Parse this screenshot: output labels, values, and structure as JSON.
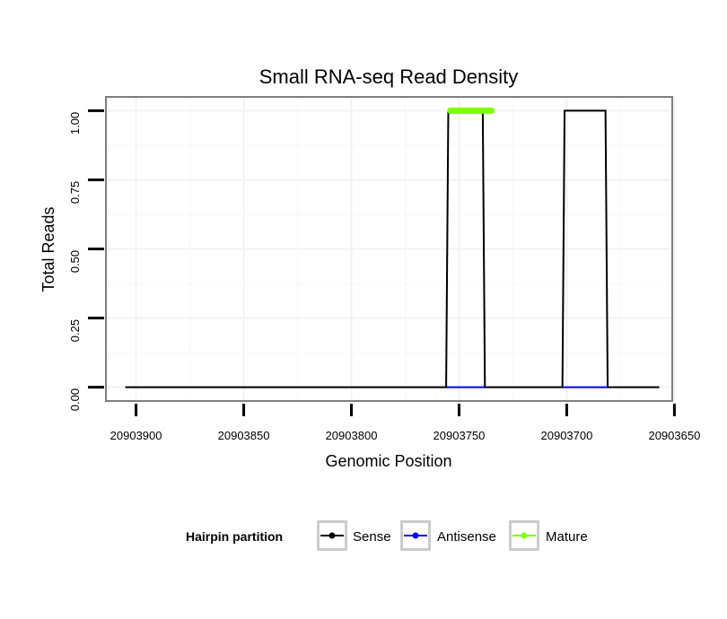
{
  "chart_data": {
    "type": "line",
    "title": "Small RNA-seq Read Density",
    "xlabel": "Genomic Position",
    "ylabel": "Total Reads",
    "x_reversed": true,
    "xlim": [
      20903651,
      20903914
    ],
    "ylim": [
      -0.05,
      1.05
    ],
    "x_ticks": [
      20903900,
      20903850,
      20903800,
      20903750,
      20903700,
      20903650
    ],
    "x_tick_labels": [
      "20903900",
      "20903850",
      "20903800",
      "20903750",
      "20903700",
      "20903650"
    ],
    "y_ticks": [
      0,
      0.25,
      0.5,
      0.75,
      1.0
    ],
    "y_tick_labels": [
      "0.00",
      "0.25",
      "0.50",
      "0.75",
      "1.00"
    ],
    "grid": true,
    "legend": {
      "title": "Hairpin partition",
      "placement": "bottom",
      "items": [
        {
          "label": "Sense",
          "color": "#000000"
        },
        {
          "label": "Antisense",
          "color": "#0000ff"
        },
        {
          "label": "Mature",
          "color": "#7fff00"
        }
      ]
    },
    "series": [
      {
        "name": "Sense",
        "color": "#000000",
        "x": [
          20903905,
          20903756,
          20903755,
          20903739,
          20903738,
          20903702,
          20903701,
          20903682,
          20903681,
          20903657
        ],
        "y": [
          0,
          0,
          1,
          1,
          0,
          0,
          1,
          1,
          0,
          0
        ]
      },
      {
        "name": "Antisense",
        "color": "#0000ff",
        "segments": [
          {
            "x": [
              20903756,
              20903738
            ],
            "y": [
              0,
              0
            ]
          },
          {
            "x": [
              20903702,
              20903681
            ],
            "y": [
              0,
              0
            ]
          }
        ]
      },
      {
        "name": "Mature",
        "color": "#7fff00",
        "x": [
          20903754,
          20903735
        ],
        "y": [
          1,
          1
        ]
      }
    ]
  }
}
